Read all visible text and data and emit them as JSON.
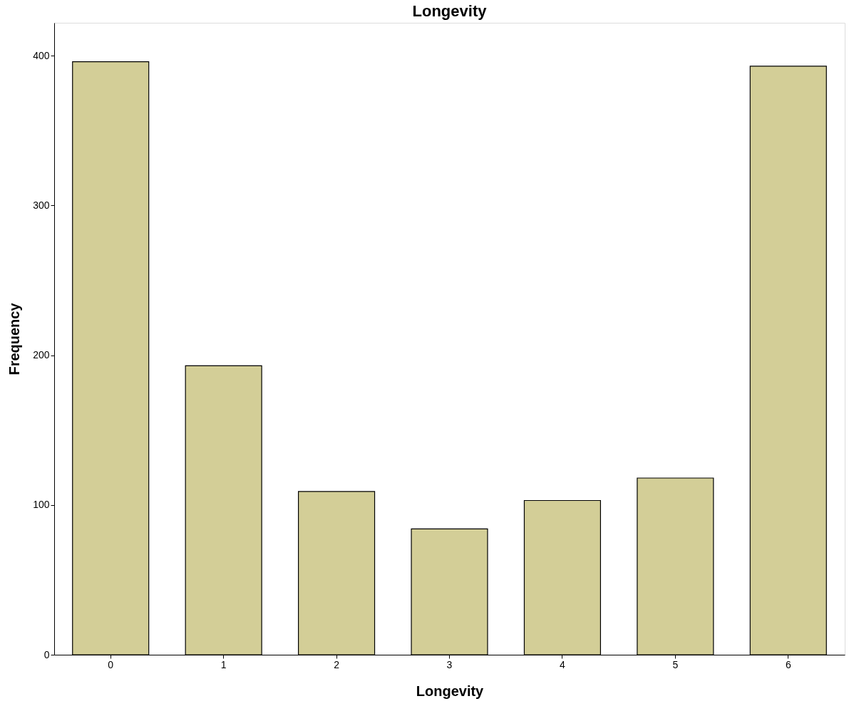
{
  "chart_data": {
    "type": "bar",
    "title": "Longevity",
    "xlabel": "Longevity",
    "ylabel": "Frequency",
    "categories": [
      "0",
      "1",
      "2",
      "3",
      "4",
      "5",
      "6"
    ],
    "values": [
      396,
      193,
      109,
      84,
      103,
      118,
      393
    ],
    "color": "#d3ce97",
    "ylim": [
      0,
      422
    ],
    "yticks": [
      0,
      100,
      200,
      300,
      400
    ],
    "grid": false
  }
}
